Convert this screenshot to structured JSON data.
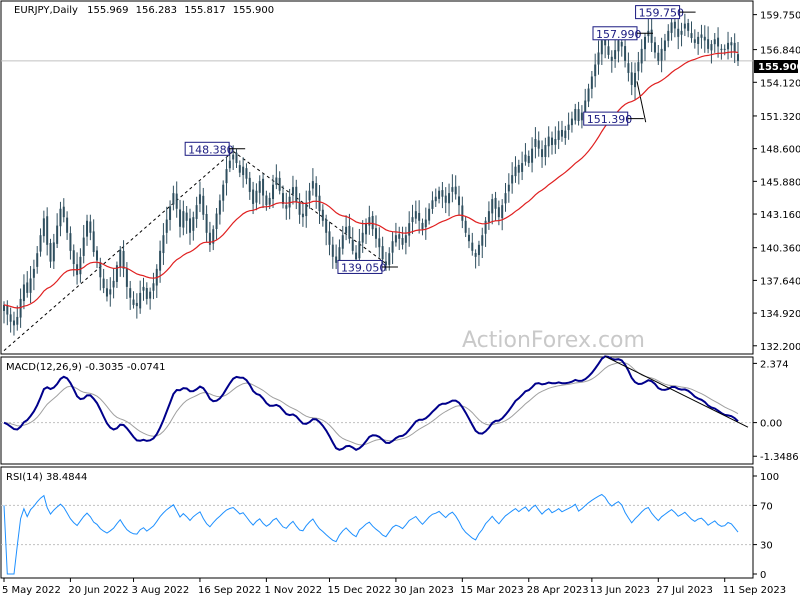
{
  "chart_data": {
    "type": "candlestick",
    "title": "EURJPY,Daily",
    "ohlc": {
      "open": "155.969",
      "high": "156.283",
      "low": "155.817",
      "close": "155.900"
    },
    "watermark": "ActionForex.com",
    "last_price_tag": "155.900",
    "colors": {
      "candles": "#2f4f5f",
      "ma": "#e02020",
      "macd_line": "#00008b",
      "macd_signal": "#a0a0a0",
      "rsi": "#1e90ff",
      "trendline": "#000000",
      "grid": "#c0c0c0",
      "box_text": "#1a1a80"
    },
    "main_panel": {
      "y_range": [
        131.6,
        160.8
      ],
      "y_ticks": [
        "159.750",
        "156.840",
        "154.120",
        "151.320",
        "148.600",
        "145.880",
        "143.160",
        "140.360",
        "137.640",
        "134.920",
        "132.200"
      ],
      "annotations": [
        {
          "label": "148.380",
          "value": 148.38
        },
        {
          "label": "139.050",
          "value": 139.05
        },
        {
          "label": "157.990",
          "value": 157.99
        },
        {
          "label": "151.390",
          "value": 151.39
        },
        {
          "label": "159.750",
          "value": 159.75
        }
      ]
    },
    "macd": {
      "label": "MACD(12,26,9) -0.3035 -0.0741",
      "y_range": [
        -1.62,
        2.55
      ],
      "y_ticks": [
        "2.374",
        "0.00",
        "-1.3486"
      ]
    },
    "rsi": {
      "label": "RSI(14) 38.4844",
      "y_range": [
        0,
        100
      ],
      "y_ticks": [
        "100",
        "70",
        "30",
        "0"
      ]
    },
    "x_ticks": [
      "5 May 2022",
      "20 Jun 2022",
      "3 Aug 2022",
      "16 Sep 2022",
      "1 Nov 2022",
      "15 Dec 2022",
      "30 Jan 2023",
      "15 Mar 2023",
      "28 Apr 2023",
      "13 Jun 2023",
      "27 Jul 2023",
      "11 Sep 2023"
    ],
    "closes": [
      135.6,
      134.8,
      134.2,
      133.9,
      134.6,
      136.1,
      137.3,
      136.6,
      137.8,
      138.6,
      139.9,
      141.4,
      142.8,
      140.6,
      139.2,
      140.8,
      142.2,
      143.6,
      142.9,
      141.6,
      140.1,
      139.0,
      138.1,
      139.6,
      141.2,
      142.6,
      141.6,
      140.0,
      139.3,
      137.9,
      137.0,
      136.3,
      136.9,
      137.6,
      138.9,
      140.2,
      138.6,
      137.1,
      136.2,
      135.6,
      135.5,
      136.6,
      137.1,
      136.1,
      136.7,
      137.4,
      138.6,
      140.1,
      141.4,
      142.7,
      143.8,
      144.9,
      143.6,
      142.1,
      143.4,
      142.6,
      141.6,
      142.9,
      143.9,
      144.8,
      143.1,
      141.6,
      140.6,
      141.9,
      143.2,
      144.3,
      145.6,
      146.9,
      147.6,
      148.1,
      147.4,
      146.6,
      147.1,
      146.1,
      145.0,
      144.0,
      145.1,
      145.9,
      144.7,
      143.9,
      144.5,
      145.6,
      146.2,
      145.1,
      144.0,
      143.6,
      144.6,
      145.4,
      144.2,
      143.1,
      142.9,
      144.1,
      145.1,
      145.9,
      144.6,
      143.4,
      142.6,
      141.6,
      140.6,
      139.6,
      139.1,
      140.4,
      141.4,
      142.1,
      141.1,
      140.1,
      139.4,
      140.9,
      141.6,
      142.4,
      142.9,
      141.9,
      141.1,
      140.4,
      139.4,
      138.9,
      139.9,
      140.9,
      141.4,
      141.1,
      140.6,
      141.4,
      142.4,
      142.9,
      143.4,
      142.6,
      141.9,
      142.7,
      143.6,
      144.3,
      144.6,
      145.1,
      144.6,
      144.1,
      144.9,
      145.4,
      144.8,
      143.9,
      142.6,
      141.6,
      140.9,
      140.1,
      139.6,
      140.6,
      141.4,
      142.6,
      143.4,
      144.4,
      143.6,
      142.9,
      143.9,
      144.9,
      145.6,
      146.4,
      147.1,
      146.6,
      147.4,
      148.1,
      147.4,
      148.6,
      149.4,
      148.6,
      147.9,
      148.9,
      149.6,
      148.9,
      149.4,
      150.1,
      149.6,
      150.1,
      150.6,
      151.1,
      151.9,
      150.9,
      151.6,
      152.6,
      153.6,
      154.6,
      155.6,
      156.6,
      157.6,
      157.2,
      156.4,
      155.9,
      156.8,
      157.6,
      157.1,
      155.9,
      154.9,
      153.9,
      154.9,
      155.8,
      156.9,
      157.9,
      158.4,
      157.4,
      156.6,
      155.9,
      156.9,
      157.6,
      158.4,
      159.1,
      158.6,
      157.9,
      158.4,
      159.0,
      158.4,
      157.8,
      157.4,
      157.9,
      158.1,
      157.6,
      156.9,
      157.3,
      157.7,
      157.1,
      156.8,
      156.9,
      157.4,
      157.2,
      156.6,
      155.9
    ]
  }
}
